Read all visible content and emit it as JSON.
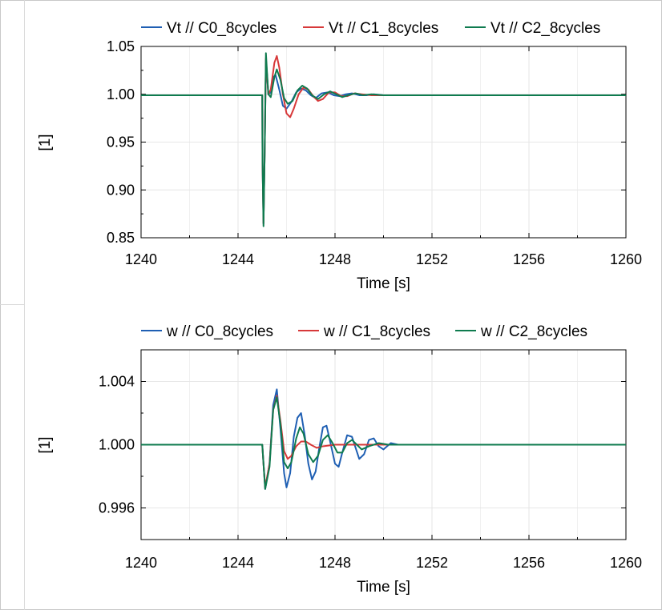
{
  "chart_data": [
    {
      "type": "line",
      "title": "",
      "xlabel": "Time [s]",
      "ylabel": "[1]",
      "xlim": [
        1240,
        1260
      ],
      "ylim": [
        0.85,
        1.05
      ],
      "xticks": [
        "1240",
        "1244",
        "1248",
        "1252",
        "1256",
        "1260"
      ],
      "yticks": [
        "0.85",
        "0.90",
        "0.95",
        "1.00",
        "1.05"
      ],
      "grid": true,
      "legend_position": "top",
      "series": [
        {
          "name": "Vt // C0_8cycles",
          "color": "#1f5fb3",
          "x": [
            1240,
            1245.0,
            1245.01,
            1245.05,
            1245.1,
            1245.15,
            1245.25,
            1245.35,
            1245.45,
            1245.55,
            1245.7,
            1245.85,
            1246.0,
            1246.2,
            1246.4,
            1246.6,
            1246.8,
            1247.0,
            1247.2,
            1247.45,
            1247.7,
            1247.95,
            1248.2,
            1248.45,
            1248.7,
            1249.0,
            1249.3,
            1249.6,
            1250.0,
            1260
          ],
          "y": [
            0.999,
            0.999,
            0.93,
            0.865,
            0.94,
            1.036,
            1.0,
            1.002,
            1.018,
            1.02,
            1.005,
            0.988,
            0.985,
            0.992,
            1.002,
            1.006,
            1.004,
            0.999,
            0.996,
            1.001,
            1.002,
            0.999,
            0.998,
            1.0,
            1.001,
            0.999,
            0.999,
            1.0,
            0.999,
            0.999
          ]
        },
        {
          "name": "Vt // C1_8cycles",
          "color": "#d7393a",
          "x": [
            1240,
            1245.0,
            1245.01,
            1245.05,
            1245.1,
            1245.15,
            1245.25,
            1245.35,
            1245.5,
            1245.6,
            1245.7,
            1245.85,
            1246.0,
            1246.15,
            1246.3,
            1246.5,
            1246.7,
            1246.9,
            1247.1,
            1247.3,
            1247.5,
            1247.75,
            1248.0,
            1248.25,
            1248.5,
            1248.8,
            1249.1,
            1249.5,
            1250.0,
            1260
          ],
          "y": [
            0.999,
            0.999,
            0.93,
            0.865,
            0.94,
            1.038,
            1.0,
            1.005,
            1.033,
            1.04,
            1.028,
            1.0,
            0.98,
            0.976,
            0.985,
            1.0,
            1.007,
            1.005,
            0.998,
            0.993,
            0.995,
            1.002,
            1.002,
            0.998,
            0.998,
            1.001,
            1.0,
            0.999,
            0.999,
            0.999
          ]
        },
        {
          "name": "Vt // C2_8cycles",
          "color": "#0f7b4f",
          "x": [
            1240,
            1245.0,
            1245.01,
            1245.05,
            1245.1,
            1245.15,
            1245.25,
            1245.35,
            1245.5,
            1245.6,
            1245.75,
            1245.9,
            1246.05,
            1246.25,
            1246.45,
            1246.65,
            1246.85,
            1247.05,
            1247.3,
            1247.55,
            1247.8,
            1248.05,
            1248.3,
            1248.55,
            1248.85,
            1249.15,
            1249.5,
            1250.0,
            1260
          ],
          "y": [
            0.999,
            0.999,
            0.93,
            0.862,
            0.94,
            1.043,
            1.0,
            0.997,
            1.018,
            1.026,
            1.015,
            0.996,
            0.99,
            0.993,
            1.004,
            1.009,
            1.006,
            0.999,
            0.995,
            1.0,
            1.003,
            1.0,
            0.997,
            0.999,
            1.001,
            0.999,
            1.0,
            0.999,
            0.999
          ]
        }
      ]
    },
    {
      "type": "line",
      "title": "",
      "xlabel": "Time [s]",
      "ylabel": "[1]",
      "xlim": [
        1240,
        1260
      ],
      "ylim": [
        0.994,
        1.006
      ],
      "xticks": [
        "1240",
        "1244",
        "1248",
        "1252",
        "1256",
        "1260"
      ],
      "yticks": [
        "0.996",
        "1.000",
        "1.004"
      ],
      "grid": true,
      "legend_position": "top",
      "series": [
        {
          "name": "w // C0_8cycles",
          "color": "#1f5fb3",
          "x": [
            1240,
            1245.0,
            1245.05,
            1245.12,
            1245.3,
            1245.45,
            1245.6,
            1245.75,
            1245.9,
            1246.0,
            1246.15,
            1246.3,
            1246.45,
            1246.6,
            1246.75,
            1246.9,
            1247.05,
            1247.2,
            1247.35,
            1247.5,
            1247.65,
            1247.8,
            1248.0,
            1248.15,
            1248.3,
            1248.5,
            1248.7,
            1248.85,
            1249.0,
            1249.2,
            1249.4,
            1249.6,
            1249.8,
            1250.0,
            1250.3,
            1250.6,
            1260
          ],
          "y": [
            1.0,
            1.0,
            0.9988,
            0.9972,
            0.9988,
            1.0025,
            1.0035,
            1.001,
            0.9982,
            0.9973,
            0.9982,
            1.0005,
            1.0017,
            1.002,
            1.0006,
            0.9988,
            0.9978,
            0.9983,
            0.9998,
            1.0011,
            1.0012,
            1.0002,
            0.9988,
            0.9986,
            0.9995,
            1.0006,
            1.0005,
            0.9998,
            0.9991,
            0.9994,
            1.0003,
            1.0004,
            0.9999,
            0.9997,
            1.0001,
            1.0,
            1.0
          ]
        },
        {
          "name": "w // C1_8cycles",
          "color": "#d7393a",
          "x": [
            1240,
            1245.0,
            1245.05,
            1245.12,
            1245.3,
            1245.45,
            1245.6,
            1245.75,
            1245.9,
            1246.05,
            1246.2,
            1246.4,
            1246.6,
            1246.8,
            1247.0,
            1247.25,
            1247.5,
            1248.0,
            1248.5,
            1260
          ],
          "y": [
            1.0,
            1.0,
            0.9988,
            0.9973,
            0.9988,
            1.0022,
            1.0031,
            1.0015,
            0.9996,
            0.9991,
            0.9993,
            0.9999,
            1.0002,
            1.0002,
            1.0,
            0.9998,
            0.9999,
            1.0,
            1.0,
            1.0
          ]
        },
        {
          "name": "w // C2_8cycles",
          "color": "#0f7b4f",
          "x": [
            1240,
            1245.0,
            1245.05,
            1245.12,
            1245.3,
            1245.45,
            1245.6,
            1245.75,
            1245.9,
            1246.05,
            1246.2,
            1246.4,
            1246.55,
            1246.7,
            1246.9,
            1247.1,
            1247.3,
            1247.5,
            1247.7,
            1247.9,
            1248.1,
            1248.3,
            1248.5,
            1248.7,
            1248.9,
            1249.1,
            1249.4,
            1249.8,
            1250.2,
            1260
          ],
          "y": [
            1.0,
            1.0,
            0.9988,
            0.9972,
            0.9986,
            1.0022,
            1.003,
            1.0013,
            0.9989,
            0.9985,
            0.9989,
            1.0004,
            1.0011,
            1.0007,
            0.9994,
            0.9989,
            0.9993,
            1.0003,
            1.0006,
            1.0001,
            0.9995,
            0.9995,
            1.0001,
            1.0003,
            1.0,
            0.9997,
            0.9999,
            1.0001,
            1.0,
            1.0
          ]
        }
      ]
    }
  ]
}
